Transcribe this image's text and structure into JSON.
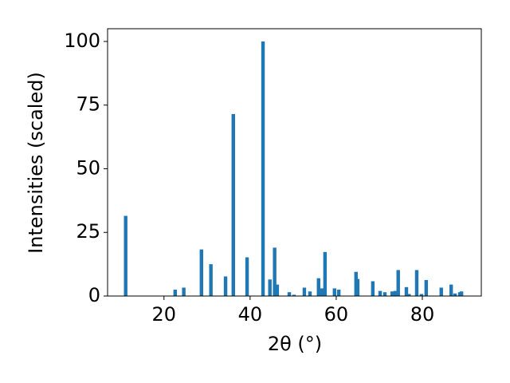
{
  "chart_data": {
    "type": "bar",
    "x_label": "2θ (°)",
    "y_label": "Intensities (scaled)",
    "x": [
      11.1,
      22.6,
      24.6,
      28.7,
      30.9,
      34.3,
      36.1,
      39.3,
      43.0,
      44.6,
      45.7,
      46.3,
      49.1,
      50.2,
      52.6,
      53.9,
      55.9,
      56.7,
      57.4,
      59.6,
      60.6,
      64.6,
      65.0,
      68.5,
      70.2,
      71.3,
      73.0,
      73.7,
      74.4,
      76.3,
      76.9,
      78.7,
      79.8,
      80.9,
      84.4,
      86.7,
      87.6,
      88.7,
      89.1
    ],
    "values": [
      31.5,
      2.5,
      3.3,
      18.3,
      12.5,
      7.7,
      71.5,
      15.2,
      100,
      6.5,
      19,
      4.5,
      1.5,
      0.5,
      3.3,
      1.8,
      7,
      3,
      17.3,
      3,
      2.5,
      9.5,
      6.7,
      5.8,
      2,
      1.5,
      1.8,
      2,
      10.2,
      3.5,
      0.8,
      10.2,
      0.8,
      6.3,
      3.3,
      4.5,
      1,
      1.5,
      1.8
    ],
    "color": "#1f77b4",
    "xlim": [
      6.9,
      93.7
    ],
    "xticks": [
      20,
      40,
      60,
      80
    ],
    "ylim": [
      0,
      105
    ],
    "yticks": [
      0,
      25,
      50,
      75,
      100
    ]
  }
}
